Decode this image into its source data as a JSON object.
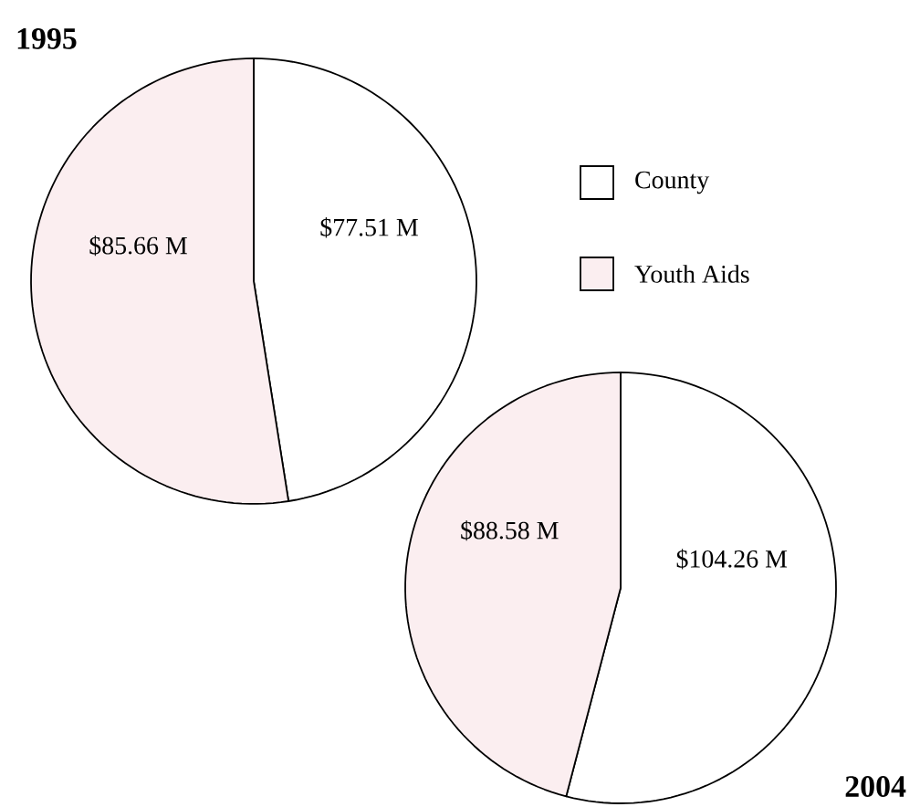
{
  "chart_data": [
    {
      "type": "pie",
      "title": "1995",
      "categories": [
        "County",
        "Youth Aids"
      ],
      "values": [
        77.51,
        85.66
      ],
      "value_labels": [
        "$77.51 M",
        "$85.66 M"
      ],
      "colors": [
        "#ffffff",
        "#fbeef0"
      ],
      "legend": "right"
    },
    {
      "type": "pie",
      "title": "2004",
      "categories": [
        null,
        null
      ],
      "values": [
        104.26,
        88.58
      ],
      "value_labels": [
        "$104.26 M",
        "$88.58 M"
      ],
      "colors": [
        "#ffffff",
        "#fbeef0"
      ]
    }
  ]
}
